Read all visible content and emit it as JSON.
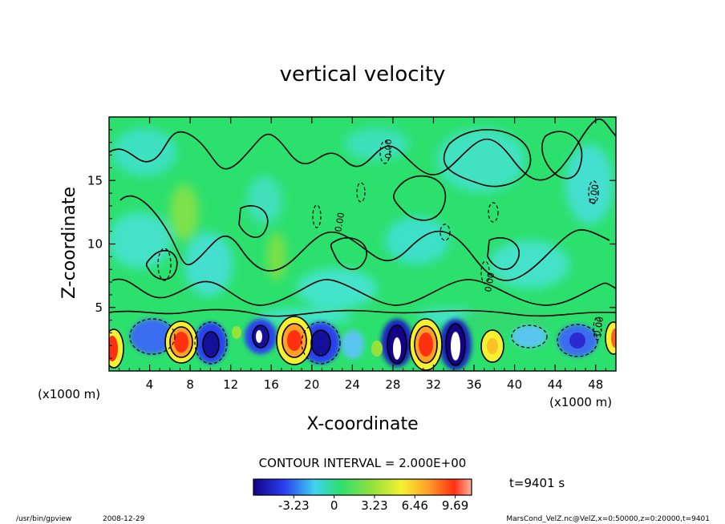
{
  "chart_data": {
    "type": "heatmap",
    "title": "vertical velocity",
    "xlabel": "X-coordinate",
    "ylabel": "Z-coordinate",
    "x_unit": "(x1000 m)",
    "xlim": [
      0,
      50
    ],
    "ylim": [
      0,
      20
    ],
    "xticks": [
      4,
      8,
      12,
      16,
      20,
      24,
      28,
      32,
      36,
      40,
      44,
      48
    ],
    "yticks": [
      5,
      10,
      15
    ],
    "contour_interval_text": "CONTOUR INTERVAL = 2.000E+00",
    "contour_labels": [
      "0.00"
    ],
    "colorbar": {
      "ticks": [
        "-3.23",
        "0",
        "3.23",
        "6.46",
        "9.69"
      ],
      "tick_values": [
        -3.23,
        0,
        3.23,
        6.46,
        9.69
      ],
      "range": [
        -6.46,
        11
      ]
    },
    "time_label": "t=9401 s",
    "updrafts": [
      {
        "x": 0.5,
        "z": 2.2,
        "w": 9
      },
      {
        "x": 7,
        "z": 2.5,
        "w": 10
      },
      {
        "x": 18,
        "z": 2.6,
        "w": 10
      },
      {
        "x": 31,
        "z": 2.4,
        "w": 11
      },
      {
        "x": 38,
        "z": 2.3,
        "w": 7
      },
      {
        "x": 49.5,
        "z": 2.6,
        "w": 9
      }
    ],
    "downdrafts": [
      {
        "x": 3,
        "z": 2.6,
        "w": -3
      },
      {
        "x": 10,
        "z": 2.4,
        "w": -4
      },
      {
        "x": 15,
        "z": 2.6,
        "w": -5
      },
      {
        "x": 21,
        "z": 2.5,
        "w": -4
      },
      {
        "x": 28,
        "z": 2.3,
        "w": -6
      },
      {
        "x": 34,
        "z": 2.2,
        "w": -6
      },
      {
        "x": 46,
        "z": 2.5,
        "w": -4
      }
    ]
  },
  "footer": {
    "program": "/usr/bin/gpview",
    "date": "2008-12-29",
    "source": "MarsCond_VelZ.nc@VelZ,x=0:50000,z=0:20000,t=9401"
  }
}
